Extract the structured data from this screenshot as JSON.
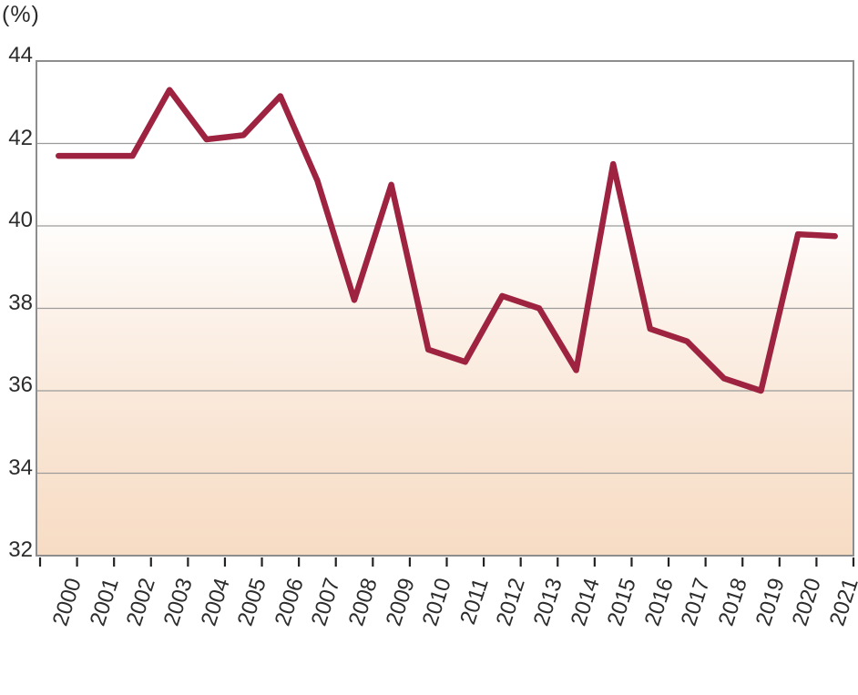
{
  "chart": {
    "unit_label": "(%)"
  },
  "chart_data": {
    "type": "line",
    "title": "",
    "xlabel": "",
    "ylabel": "(%)",
    "x_labels": [
      "2000",
      "2001",
      "2002",
      "2003",
      "2004",
      "2005",
      "2006",
      "2007",
      "2008",
      "2009",
      "2010",
      "2011",
      "2012",
      "2013",
      "2014",
      "2015",
      "2016",
      "2017",
      "2018",
      "2019",
      "2020",
      "2021"
    ],
    "series": [
      {
        "name": "percentage",
        "values": [
          41.7,
          41.7,
          41.7,
          43.3,
          42.1,
          42.2,
          43.15,
          41.1,
          38.2,
          41.0,
          37.0,
          36.7,
          38.3,
          38.0,
          36.5,
          41.5,
          37.5,
          37.2,
          36.3,
          36.0,
          39.8,
          39.75
        ]
      }
    ],
    "ylim": [
      32,
      44
    ],
    "yticks": [
      44,
      42,
      40,
      38,
      36,
      34,
      32
    ],
    "grid": true,
    "legend_position": "none",
    "styles": {
      "line_color": "#9e2340",
      "grid_color": "#9b9b9b",
      "border_color": "#8d8d8d",
      "tick_color": "#222222",
      "label_color": "#2c2c2c",
      "plot_gradient": [
        [
          "0",
          "#ffffff"
        ],
        [
          "0.30",
          "#ffffff"
        ],
        [
          "0.42",
          "#fdf7f2"
        ],
        [
          "0.58",
          "#fbeee3"
        ],
        [
          "0.75",
          "#f9e5d4"
        ],
        [
          "1",
          "#f7dcc4"
        ]
      ]
    }
  }
}
